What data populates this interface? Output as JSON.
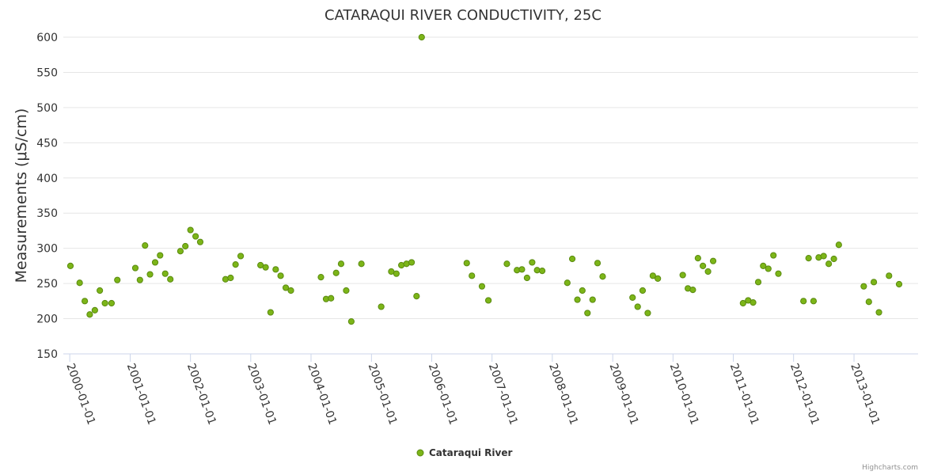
{
  "chart_data": {
    "type": "scatter",
    "title": "CATARAQUI RIVER CONDUCTIVITY, 25C",
    "ylabel": "Measurements (μS/cm)",
    "xlabel": "",
    "ylim": [
      150,
      600
    ],
    "yticks": [
      150,
      200,
      250,
      300,
      350,
      400,
      450,
      500,
      550,
      600
    ],
    "xlim": [
      "1999-11-23",
      "2014-01-24"
    ],
    "xticks": [
      "2000-01-01",
      "2001-01-01",
      "2002-01-01",
      "2003-01-01",
      "2004-01-01",
      "2005-01-01",
      "2006-01-01",
      "2007-01-01",
      "2008-01-01",
      "2009-01-01",
      "2010-01-01",
      "2011-01-01",
      "2012-01-01",
      "2013-01-01"
    ],
    "grid": true,
    "legend_position": "bottom-center",
    "series": [
      {
        "name": "Cataraqui River",
        "color": "#7cb518",
        "stroke": "#5a8a10",
        "points": [
          {
            "x": "2000-01-05",
            "y": 275
          },
          {
            "x": "2000-03-01",
            "y": 251
          },
          {
            "x": "2000-04-01",
            "y": 225
          },
          {
            "x": "2000-05-01",
            "y": 206
          },
          {
            "x": "2000-06-01",
            "y": 212
          },
          {
            "x": "2000-07-01",
            "y": 240
          },
          {
            "x": "2000-08-01",
            "y": 222
          },
          {
            "x": "2000-09-10",
            "y": 222
          },
          {
            "x": "2000-10-15",
            "y": 255
          },
          {
            "x": "2001-02-01",
            "y": 272
          },
          {
            "x": "2001-03-01",
            "y": 255
          },
          {
            "x": "2001-04-01",
            "y": 304
          },
          {
            "x": "2001-05-01",
            "y": 263
          },
          {
            "x": "2001-06-01",
            "y": 280
          },
          {
            "x": "2001-07-01",
            "y": 290
          },
          {
            "x": "2001-08-01",
            "y": 264
          },
          {
            "x": "2001-09-01",
            "y": 256
          },
          {
            "x": "2001-11-01",
            "y": 296
          },
          {
            "x": "2001-12-01",
            "y": 303
          },
          {
            "x": "2002-01-01",
            "y": 326
          },
          {
            "x": "2002-02-01",
            "y": 317
          },
          {
            "x": "2002-03-01",
            "y": 309
          },
          {
            "x": "2002-08-01",
            "y": 256
          },
          {
            "x": "2002-09-01",
            "y": 258
          },
          {
            "x": "2002-10-01",
            "y": 277
          },
          {
            "x": "2002-11-01",
            "y": 289
          },
          {
            "x": "2003-03-01",
            "y": 276
          },
          {
            "x": "2003-04-01",
            "y": 273
          },
          {
            "x": "2003-05-01",
            "y": 209
          },
          {
            "x": "2003-06-01",
            "y": 270
          },
          {
            "x": "2003-07-01",
            "y": 261
          },
          {
            "x": "2003-08-01",
            "y": 244
          },
          {
            "x": "2003-09-01",
            "y": 240
          },
          {
            "x": "2004-03-01",
            "y": 259
          },
          {
            "x": "2004-04-01",
            "y": 228
          },
          {
            "x": "2004-05-01",
            "y": 229
          },
          {
            "x": "2004-06-01",
            "y": 265
          },
          {
            "x": "2004-07-01",
            "y": 278
          },
          {
            "x": "2004-08-01",
            "y": 240
          },
          {
            "x": "2004-09-01",
            "y": 196
          },
          {
            "x": "2004-11-01",
            "y": 278
          },
          {
            "x": "2005-03-01",
            "y": 217
          },
          {
            "x": "2005-05-01",
            "y": 267
          },
          {
            "x": "2005-06-01",
            "y": 264
          },
          {
            "x": "2005-07-01",
            "y": 276
          },
          {
            "x": "2005-08-01",
            "y": 278
          },
          {
            "x": "2005-09-01",
            "y": 280
          },
          {
            "x": "2005-10-01",
            "y": 232
          },
          {
            "x": "2005-11-01",
            "y": 600
          },
          {
            "x": "2006-08-01",
            "y": 279
          },
          {
            "x": "2006-09-01",
            "y": 261
          },
          {
            "x": "2006-11-01",
            "y": 246
          },
          {
            "x": "2006-12-10",
            "y": 226
          },
          {
            "x": "2007-04-01",
            "y": 278
          },
          {
            "x": "2007-06-01",
            "y": 269
          },
          {
            "x": "2007-07-01",
            "y": 270
          },
          {
            "x": "2007-08-01",
            "y": 258
          },
          {
            "x": "2007-09-01",
            "y": 280
          },
          {
            "x": "2007-10-01",
            "y": 269
          },
          {
            "x": "2007-11-01",
            "y": 268
          },
          {
            "x": "2008-04-01",
            "y": 251
          },
          {
            "x": "2008-05-01",
            "y": 285
          },
          {
            "x": "2008-06-01",
            "y": 227
          },
          {
            "x": "2008-07-01",
            "y": 240
          },
          {
            "x": "2008-08-01",
            "y": 208
          },
          {
            "x": "2008-09-01",
            "y": 227
          },
          {
            "x": "2008-10-01",
            "y": 279
          },
          {
            "x": "2008-11-01",
            "y": 260
          },
          {
            "x": "2009-05-01",
            "y": 230
          },
          {
            "x": "2009-06-01",
            "y": 217
          },
          {
            "x": "2009-07-01",
            "y": 240
          },
          {
            "x": "2009-08-01",
            "y": 208
          },
          {
            "x": "2009-09-01",
            "y": 261
          },
          {
            "x": "2009-10-01",
            "y": 257
          },
          {
            "x": "2010-03-01",
            "y": 262
          },
          {
            "x": "2010-04-01",
            "y": 243
          },
          {
            "x": "2010-05-01",
            "y": 241
          },
          {
            "x": "2010-06-01",
            "y": 286
          },
          {
            "x": "2010-07-01",
            "y": 275
          },
          {
            "x": "2010-08-01",
            "y": 267
          },
          {
            "x": "2010-09-01",
            "y": 282
          },
          {
            "x": "2011-03-01",
            "y": 222
          },
          {
            "x": "2011-04-01",
            "y": 226
          },
          {
            "x": "2011-05-01",
            "y": 223
          },
          {
            "x": "2011-06-01",
            "y": 252
          },
          {
            "x": "2011-07-01",
            "y": 275
          },
          {
            "x": "2011-08-01",
            "y": 271
          },
          {
            "x": "2011-09-01",
            "y": 290
          },
          {
            "x": "2011-10-01",
            "y": 264
          },
          {
            "x": "2012-03-01",
            "y": 225
          },
          {
            "x": "2012-04-01",
            "y": 286
          },
          {
            "x": "2012-05-01",
            "y": 225
          },
          {
            "x": "2012-06-01",
            "y": 287
          },
          {
            "x": "2012-07-01",
            "y": 289
          },
          {
            "x": "2012-08-01",
            "y": 278
          },
          {
            "x": "2012-09-01",
            "y": 285
          },
          {
            "x": "2012-10-01",
            "y": 305
          },
          {
            "x": "2013-03-01",
            "y": 246
          },
          {
            "x": "2013-04-01",
            "y": 224
          },
          {
            "x": "2013-05-01",
            "y": 252
          },
          {
            "x": "2013-06-01",
            "y": 209
          },
          {
            "x": "2013-08-01",
            "y": 261
          },
          {
            "x": "2013-10-01",
            "y": 249
          }
        ]
      }
    ],
    "credits": "Highcharts.com"
  }
}
